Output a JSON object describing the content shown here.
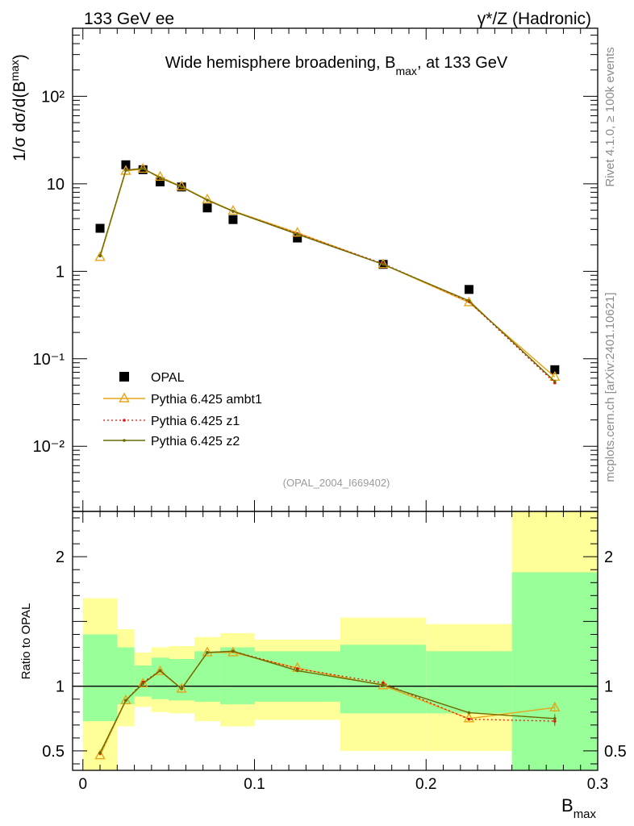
{
  "header": {
    "left": "133 GeV ee",
    "right": "γ*/Z (Hadronic)"
  },
  "side_labels": {
    "rivet": "Rivet 4.1.0, ≥ 100k events",
    "mcplots": "mcplots.cern.ch [arXiv:2401.10621]"
  },
  "colors": {
    "opal": "#000000",
    "ambt1": "#e8a418",
    "z1": "#e01010",
    "z2": "#6b6b00",
    "band_inner": "#99ff99",
    "band_outer": "#ffff99"
  },
  "chart_data": [
    {
      "type": "line",
      "title_main": "Wide hemisphere broadening, B",
      "title_sub": "max",
      "title_tail": ", at 133 GeV",
      "ylabel_main": "1/σ  dσ/d(B",
      "ylabel_sub": "max",
      "ylabel_tail": ")",
      "yscale": "log",
      "ylim": [
        0.0018,
        600
      ],
      "xlim": [
        -0.006,
        0.3
      ],
      "ytick_labels": [
        "10⁻²",
        "10⁻¹",
        "1",
        "10",
        "10²"
      ],
      "ytick_values": [
        0.01,
        0.1,
        1,
        10,
        100
      ],
      "watermark": "(OPAL_2004_I669402)",
      "legend_position": "middle-left",
      "x": [
        0.01,
        0.025,
        0.035,
        0.045,
        0.0575,
        0.0725,
        0.0875,
        0.125,
        0.175,
        0.225,
        0.275
      ],
      "series": [
        {
          "name": "OPAL",
          "marker": "square",
          "values": [
            3.1,
            16.5,
            14.5,
            10.5,
            9.2,
            5.3,
            3.9,
            2.4,
            1.2,
            0.62,
            0.075
          ]
        },
        {
          "name": "Pythia 6.425 ambt1",
          "marker": "triangle",
          "values": [
            1.45,
            14.0,
            14.8,
            12.0,
            9.3,
            6.6,
            4.9,
            2.75,
            1.2,
            0.44,
            0.062
          ]
        },
        {
          "name": "Pythia 6.425 z1",
          "marker": "dot",
          "dashed": true,
          "values": [
            1.5,
            14.3,
            15.0,
            11.7,
            9.2,
            6.5,
            4.85,
            2.7,
            1.22,
            0.45,
            0.053
          ]
        },
        {
          "name": "Pythia 6.425 z2",
          "marker": "dot",
          "values": [
            1.5,
            14.3,
            15.0,
            11.7,
            9.2,
            6.5,
            4.85,
            2.65,
            1.2,
            0.46,
            0.055
          ]
        }
      ]
    },
    {
      "type": "line",
      "ylabel": "Ratio to OPAL",
      "xlabel_main": "B",
      "xlabel_sub": "max",
      "ylim": [
        0.35,
        2.35
      ],
      "xlim": [
        -0.006,
        0.3
      ],
      "xtick_labels": [
        "0",
        "0.1",
        "0.2",
        "0.3"
      ],
      "xtick_values": [
        0,
        0.1,
        0.2,
        0.3
      ],
      "ytick_labels": [
        "0.5",
        "1",
        "2"
      ],
      "ytick_values": [
        0.5,
        1,
        2
      ],
      "bin_edges": [
        0,
        0.02,
        0.03,
        0.04,
        0.05,
        0.065,
        0.08,
        0.1,
        0.15,
        0.2,
        0.25,
        0.3
      ],
      "band_inner": [
        [
          0.73,
          1.4
        ],
        [
          0.86,
          1.3
        ],
        [
          0.92,
          1.16
        ],
        [
          0.9,
          1.22
        ],
        [
          0.89,
          1.21
        ],
        [
          0.88,
          1.27
        ],
        [
          0.86,
          1.3
        ],
        [
          0.88,
          1.27
        ],
        [
          0.79,
          1.32
        ],
        [
          0.79,
          1.27
        ],
        [
          0.35,
          1.88
        ]
      ],
      "band_outer": [
        [
          0.35,
          1.68
        ],
        [
          0.69,
          1.44
        ],
        [
          0.84,
          1.26
        ],
        [
          0.8,
          1.3
        ],
        [
          0.79,
          1.31
        ],
        [
          0.73,
          1.38
        ],
        [
          0.69,
          1.41
        ],
        [
          0.74,
          1.36
        ],
        [
          0.5,
          1.53
        ],
        [
          0.5,
          1.48
        ],
        [
          0.35,
          2.35
        ]
      ],
      "x": [
        0.01,
        0.025,
        0.035,
        0.045,
        0.0575,
        0.0725,
        0.0875,
        0.125,
        0.175,
        0.225,
        0.275
      ],
      "series": [
        {
          "name": "Pythia 6.425 ambt1",
          "marker": "triangle",
          "values": [
            0.465,
            0.89,
            1.02,
            1.115,
            0.98,
            1.26,
            1.26,
            1.14,
            1.005,
            0.75,
            0.835
          ]
        },
        {
          "name": "Pythia 6.425 z1",
          "marker": "dot",
          "dashed": true,
          "values": [
            0.48,
            0.89,
            1.03,
            1.12,
            0.98,
            1.26,
            1.27,
            1.135,
            1.025,
            0.745,
            0.73
          ]
        },
        {
          "name": "Pythia 6.425 z2",
          "marker": "dot",
          "values": [
            0.485,
            0.89,
            1.02,
            1.12,
            0.98,
            1.26,
            1.27,
            1.12,
            1.01,
            0.795,
            0.75
          ]
        }
      ]
    }
  ]
}
